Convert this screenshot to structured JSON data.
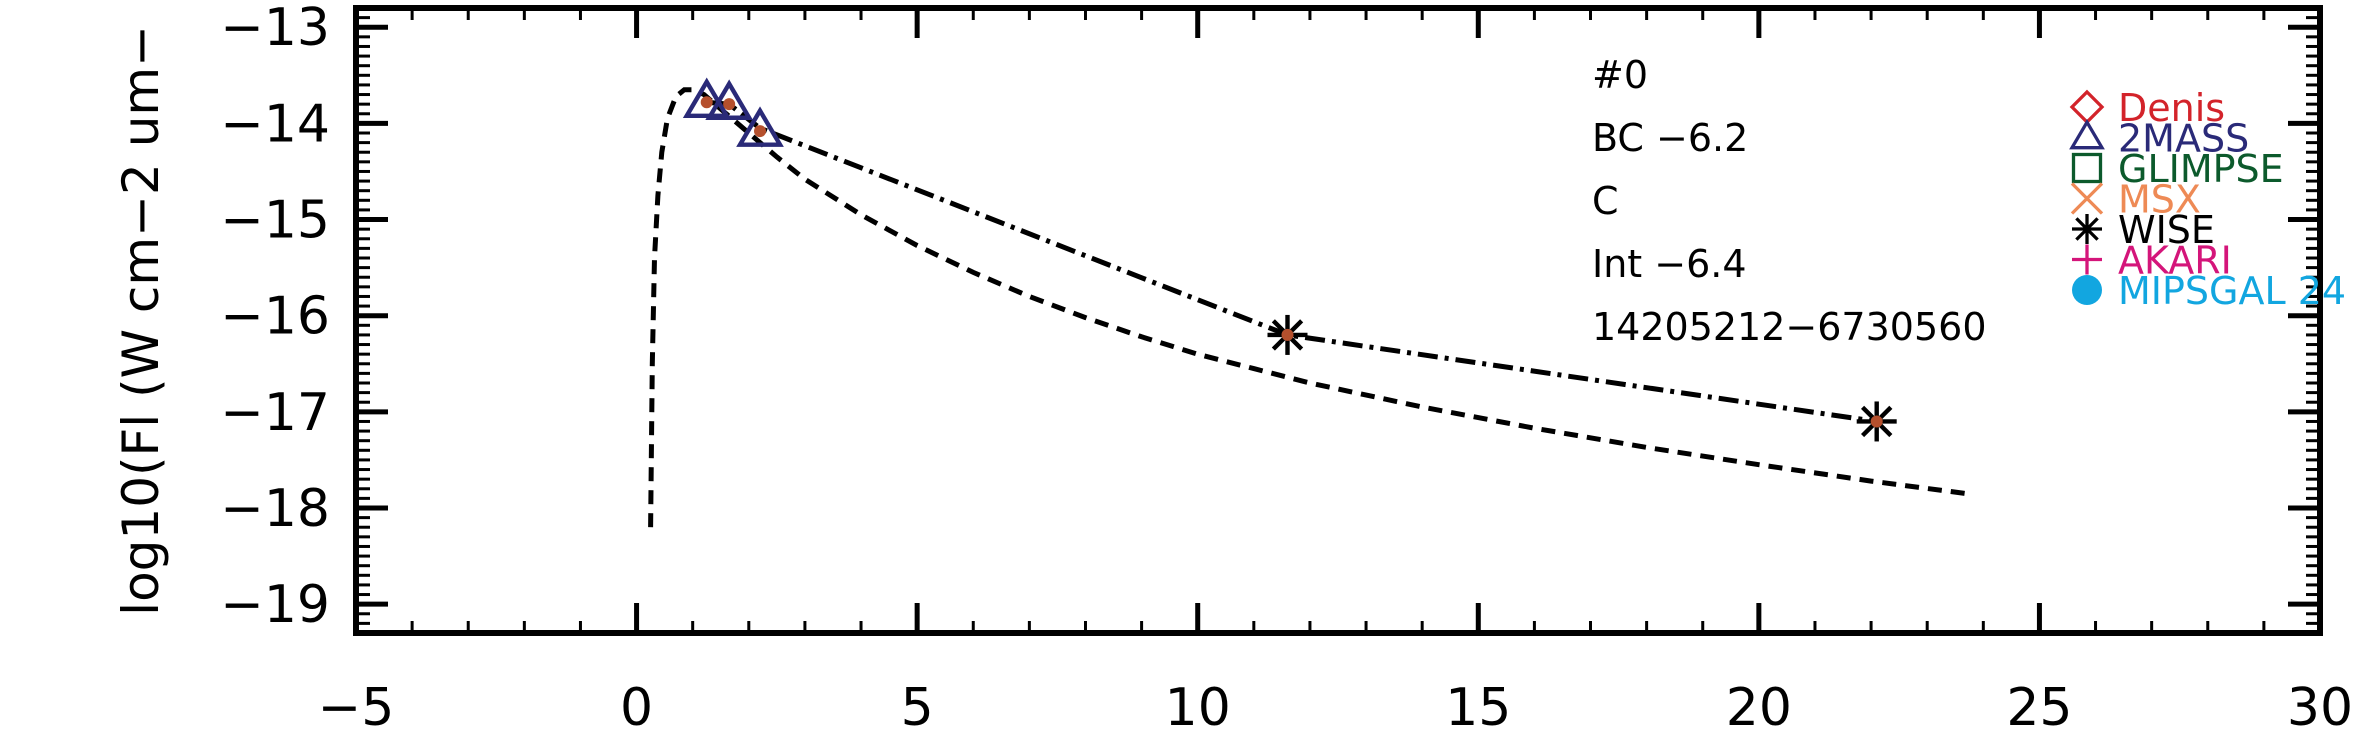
{
  "chart_data": {
    "type": "line",
    "xlabel": "",
    "ylabel": "log10(Fl (W cm−2 um−",
    "xlim": [
      -5,
      30
    ],
    "ylim": [
      -19.3,
      -12.8
    ],
    "x_ticks": [
      -5,
      0,
      5,
      10,
      15,
      20,
      25,
      30
    ],
    "x_tick_labels": [
      "−5",
      "0",
      "5",
      "10",
      "15",
      "20",
      "25",
      "30"
    ],
    "y_ticks": [
      -13,
      -14,
      -15,
      -16,
      -17,
      -18,
      -19
    ],
    "y_tick_labels": [
      "−13",
      "−14",
      "−15",
      "−16",
      "−17",
      "−18",
      "−19"
    ],
    "annotations": [
      "#0",
      "BC −6.2",
      "C",
      "Int −6.4",
      "14205212−6730560"
    ],
    "series": [
      {
        "style": "dashed",
        "x": [
          0.25,
          0.28,
          0.32,
          0.38,
          0.45,
          0.55,
          0.7,
          0.85,
          1.0,
          1.2,
          1.5,
          2.0,
          2.5,
          3.0,
          4.0,
          5.0,
          6.0,
          7.0,
          8.0,
          9.0,
          10.0,
          11.0,
          12.0,
          14.0,
          16.0,
          18.0,
          20.0,
          22.0,
          23.7
        ],
        "y": [
          -18.2,
          -16.5,
          -15.4,
          -14.75,
          -14.3,
          -13.95,
          -13.72,
          -13.65,
          -13.65,
          -13.7,
          -13.85,
          -14.1,
          -14.35,
          -14.58,
          -14.95,
          -15.27,
          -15.55,
          -15.8,
          -16.02,
          -16.22,
          -16.4,
          -16.55,
          -16.7,
          -16.95,
          -17.17,
          -17.37,
          -17.55,
          -17.72,
          -17.85
        ]
      },
      {
        "style": "dashdot",
        "x": [
          1.25,
          1.65,
          2.2,
          11.6,
          22.1
        ],
        "y": [
          -13.78,
          -13.8,
          -14.05,
          -16.2,
          -17.1
        ]
      }
    ],
    "points": [
      {
        "survey": "2MASS",
        "x": 1.25,
        "y": -13.78
      },
      {
        "survey": "2MASS",
        "x": 1.65,
        "y": -13.8
      },
      {
        "survey": "2MASS",
        "x": 2.2,
        "y": -14.08
      },
      {
        "survey": "WISE",
        "x": 11.6,
        "y": -16.2
      },
      {
        "survey": "WISE",
        "x": 22.1,
        "y": -17.1
      }
    ],
    "legend": {
      "placement": "top-right",
      "entries": [
        {
          "label": "Denis",
          "marker": "diamond",
          "color": "#d3232a"
        },
        {
          "label": "2MASS",
          "marker": "triangle",
          "color": "#2a2a78"
        },
        {
          "label": "GLIMPSE",
          "marker": "square",
          "color": "#0c5a2c"
        },
        {
          "label": "MSX",
          "marker": "x",
          "color": "#ee8a55"
        },
        {
          "label": "WISE",
          "marker": "asterisk",
          "color": "#000000"
        },
        {
          "label": "AKARI",
          "marker": "plus",
          "color": "#d4157a"
        },
        {
          "label": "MIPSGAL 24",
          "marker": "circle",
          "color": "#12a6e0"
        }
      ]
    },
    "colors": {
      "axis": "#000000",
      "center_dot": "#b5502d"
    }
  }
}
